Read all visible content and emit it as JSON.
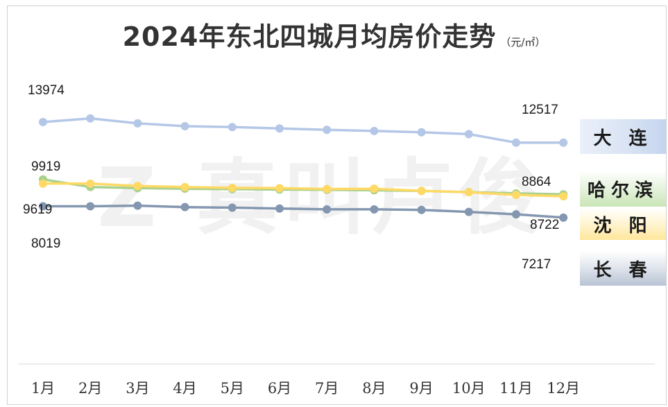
{
  "title": "2024年东北四城月均房价走势",
  "unit": "（元/㎡）",
  "chart_data": {
    "type": "line",
    "categories": [
      "1月",
      "2月",
      "3月",
      "4月",
      "5月",
      "6月",
      "7月",
      "8月",
      "9月",
      "10月",
      "11月",
      "12月"
    ],
    "series": [
      {
        "name": "大 连",
        "color": "#b4c7e7",
        "values": [
          13974,
          14230,
          13880,
          13680,
          13620,
          13520,
          13420,
          13340,
          13250,
          13120,
          12517,
          12517
        ]
      },
      {
        "name": "哈尔滨",
        "color": "#a9d18e",
        "values": [
          9919,
          9380,
          9300,
          9260,
          9230,
          9200,
          9180,
          9150,
          9100,
          9020,
          8930,
          8864
        ]
      },
      {
        "name": "沈 阳",
        "color": "#ffd966",
        "values": [
          9619,
          9620,
          9450,
          9380,
          9320,
          9300,
          9240,
          9260,
          9110,
          9010,
          8820,
          8722
        ]
      },
      {
        "name": "长 春",
        "color": "#8497b0",
        "values": [
          8019,
          8019,
          8060,
          7960,
          7920,
          7860,
          7800,
          7800,
          7760,
          7620,
          7450,
          7217
        ]
      }
    ],
    "data_labels": [
      {
        "series": 0,
        "point": 0,
        "text": "13974"
      },
      {
        "series": 0,
        "point": 11,
        "text": "12517"
      },
      {
        "series": 1,
        "point": 0,
        "text": "9919"
      },
      {
        "series": 1,
        "point": 11,
        "text": "8864"
      },
      {
        "series": 2,
        "point": 0,
        "text": "9619"
      },
      {
        "series": 2,
        "point": 11,
        "text": "8722"
      },
      {
        "series": 3,
        "point": 0,
        "text": "8019"
      },
      {
        "series": 3,
        "point": 11,
        "text": "7217"
      }
    ],
    "ylim": [
      3000,
      16000
    ],
    "grid": false,
    "legend": "right"
  },
  "watermark": "Z 真叫卢俊"
}
